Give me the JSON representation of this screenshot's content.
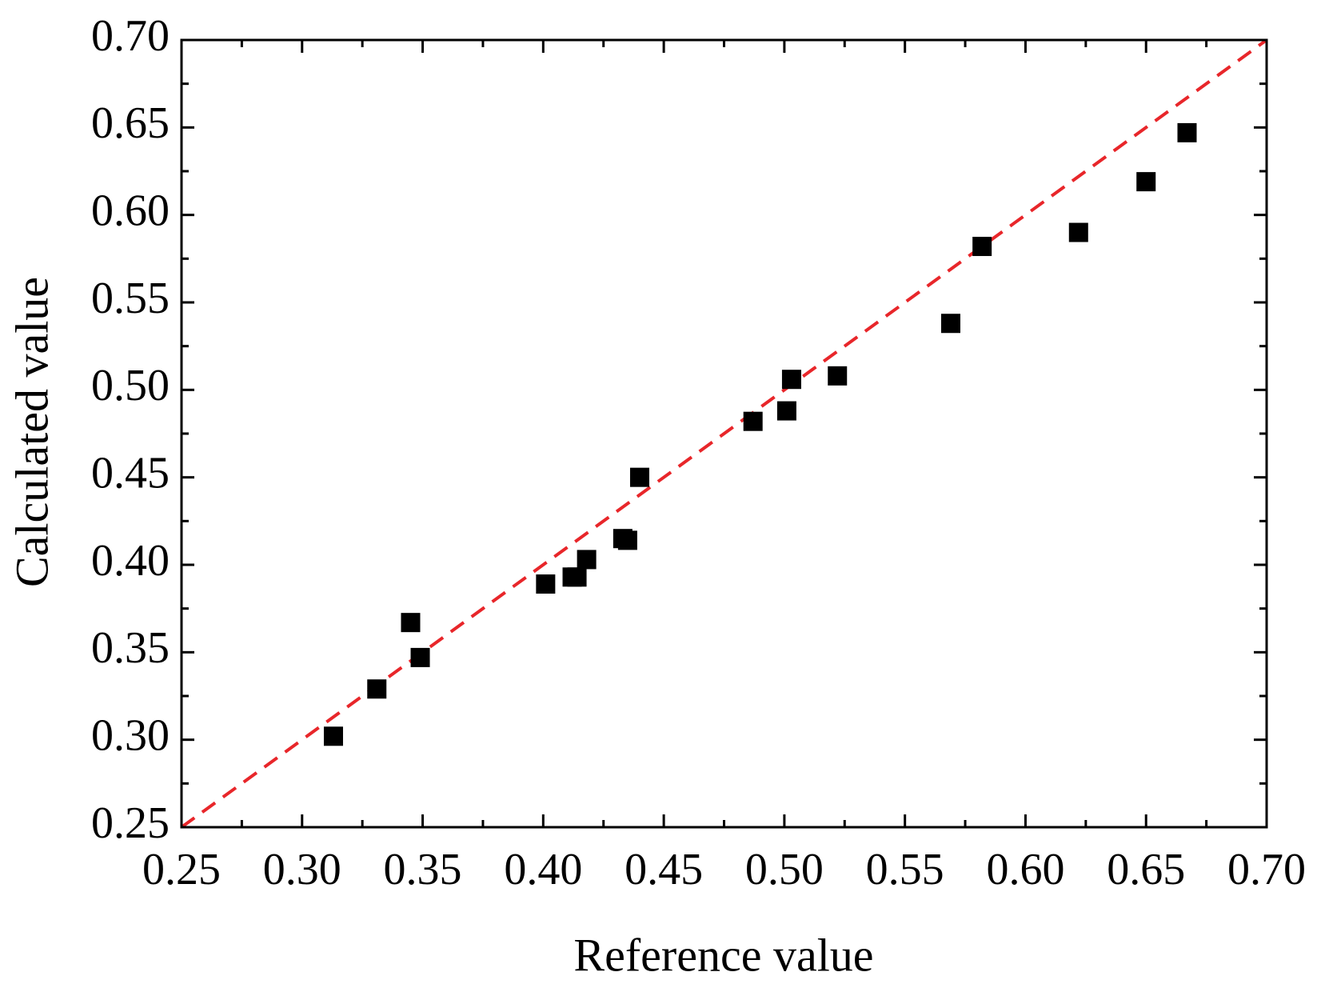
{
  "chart_data": {
    "type": "scatter",
    "x_label": "Reference value",
    "y_label": "Calculated value",
    "series": [
      {
        "color": "#000000",
        "x": [
          0.313,
          0.331,
          0.345,
          0.349,
          0.401,
          0.412,
          0.414,
          0.418,
          0.433,
          0.435,
          0.44,
          0.487,
          0.501,
          0.503,
          0.522,
          0.569,
          0.582,
          0.622,
          0.65,
          0.667
        ],
        "values": [
          0.302,
          0.329,
          0.367,
          0.347,
          0.389,
          0.393,
          0.393,
          0.403,
          0.415,
          0.414,
          0.45,
          0.482,
          0.488,
          0.506,
          0.508,
          0.538,
          0.582,
          0.59,
          0.619,
          0.647
        ]
      }
    ],
    "xlim": [
      0.25,
      0.7
    ],
    "ylim": [
      0.25,
      0.7
    ],
    "xticks": [
      0.25,
      {
        "value": 0.3,
        "label": "0.30"
      },
      0.35,
      {
        "value": 0.4,
        "label": "0.40"
      },
      0.45,
      {
        "value": 0.5,
        "label": "0.50"
      },
      0.55,
      {
        "value": 0.6,
        "label": "0.60"
      },
      0.65,
      {
        "value": 0.7,
        "label": "0.70"
      }
    ],
    "yticks": [
      0.25,
      {
        "value": 0.3,
        "label": "0.30"
      },
      0.35,
      {
        "value": 0.4,
        "label": "0.40"
      },
      0.45,
      {
        "value": 0.5,
        "label": "0.50"
      },
      0.55,
      {
        "value": 0.6,
        "label": "0.60"
      },
      0.65,
      {
        "value": 0.7,
        "label": "0.70"
      }
    ],
    "diagonal_line_color": "#e8262a",
    "grid": false
  }
}
